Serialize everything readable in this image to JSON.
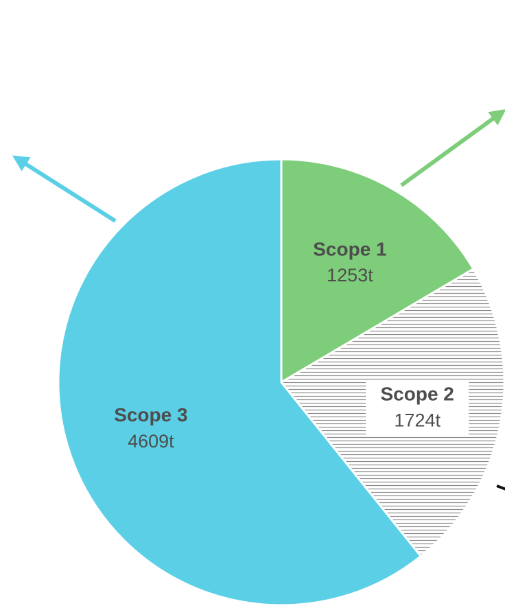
{
  "chart_data": {
    "type": "pie",
    "categories": [
      "Scope 1",
      "Scope 2",
      "Scope 3"
    ],
    "values": [
      1253,
      1724,
      4609
    ],
    "value_labels": [
      "1253t",
      "1724t",
      "4609t"
    ],
    "colors": [
      "#7ecd7a",
      "#8a8a8a",
      "#5bcfe6"
    ],
    "hatch": [
      false,
      true,
      false
    ]
  }
}
